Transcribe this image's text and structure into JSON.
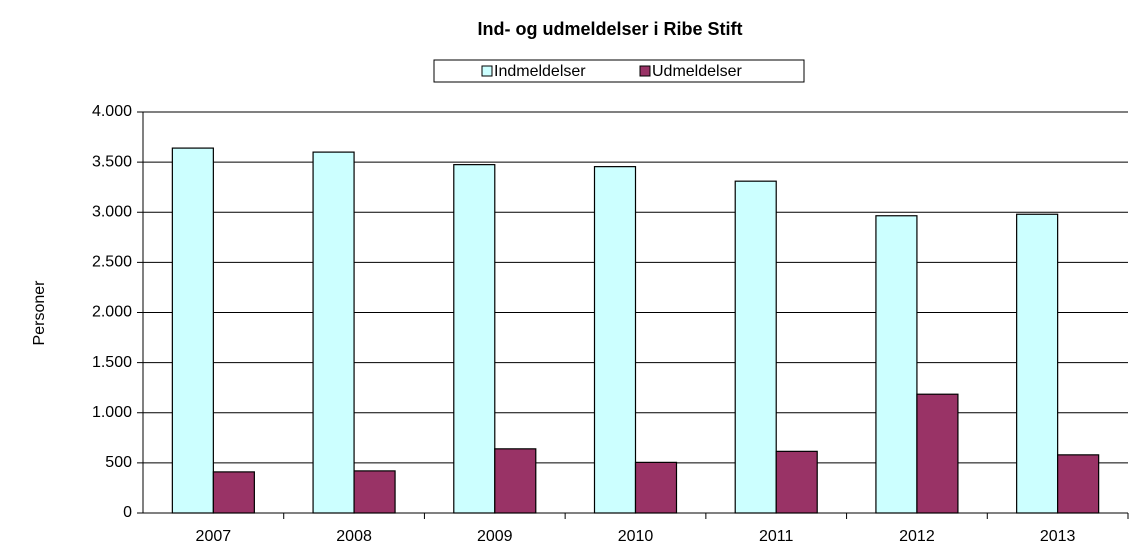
{
  "chart_data": {
    "type": "bar",
    "title": "Ind- og udmeldelser i Ribe Stift",
    "y_label": "Personer",
    "categories": [
      "2007",
      "2008",
      "2009",
      "2010",
      "2011",
      "2012",
      "2013"
    ],
    "series": [
      {
        "name": "Indmeldelser",
        "color": "#ccffff",
        "values": [
          3640,
          3600,
          3475,
          3455,
          3310,
          2965,
          2980
        ]
      },
      {
        "name": "Udmeldelser",
        "color": "#993366",
        "values": [
          410,
          420,
          640,
          505,
          615,
          1185,
          580
        ]
      }
    ],
    "ylim": [
      0,
      4000
    ],
    "yticks": [
      0,
      500,
      {
        "value": 1000,
        "label": "1.000"
      },
      {
        "value": 1500,
        "label": "1.500"
      },
      {
        "value": 2000,
        "label": "2.000"
      },
      {
        "value": 2500,
        "label": "2.500"
      },
      {
        "value": 3000,
        "label": "3.000"
      },
      {
        "value": 3500,
        "label": "3.500"
      },
      {
        "value": 4000,
        "label": "4.000"
      }
    ],
    "grid": true,
    "legend": "top"
  }
}
